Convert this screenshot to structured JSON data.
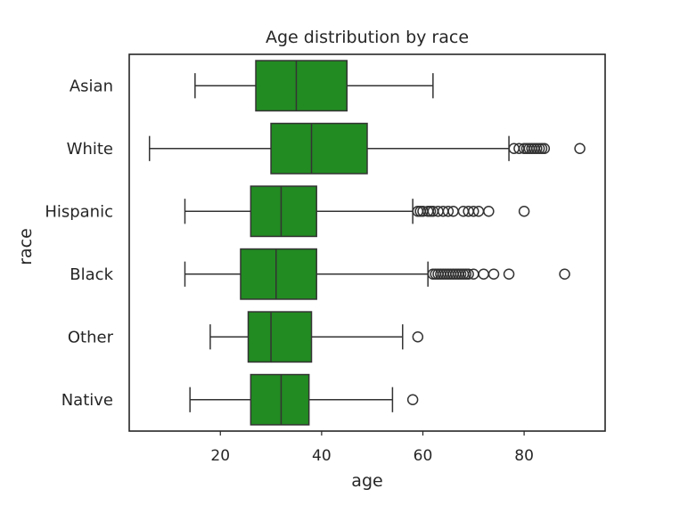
{
  "chart_data": {
    "type": "box",
    "orientation": "horizontal",
    "title": "Age distribution by race",
    "xlabel": "age",
    "ylabel": "race",
    "xlim": [
      2,
      96
    ],
    "xticks": [
      20,
      40,
      60,
      80
    ],
    "grid": false,
    "box_color": "#228b22",
    "categories": [
      "Asian",
      "White",
      "Hispanic",
      "Black",
      "Other",
      "Native"
    ],
    "series": [
      {
        "category": "Asian",
        "whisker_low": 15,
        "q1": 27,
        "median": 35,
        "q3": 45,
        "whisker_high": 62,
        "outliers": []
      },
      {
        "category": "White",
        "whisker_low": 6,
        "q1": 30,
        "median": 38,
        "q3": 49,
        "whisker_high": 77,
        "outliers": [
          78,
          79,
          80,
          80.5,
          81,
          81.5,
          82,
          82.5,
          83,
          83.5,
          84,
          91
        ]
      },
      {
        "category": "Hispanic",
        "whisker_low": 13,
        "q1": 26,
        "median": 32,
        "q3": 39,
        "whisker_high": 58,
        "outliers": [
          59,
          59.5,
          60,
          61,
          61.5,
          62,
          63,
          64,
          65,
          66,
          68,
          69,
          70,
          71,
          73,
          80
        ]
      },
      {
        "category": "Black",
        "whisker_low": 13,
        "q1": 24,
        "median": 31,
        "q3": 39,
        "whisker_high": 61,
        "outliers": [
          62,
          62.5,
          63,
          63.5,
          64,
          64.5,
          65,
          65.5,
          66,
          66.5,
          67,
          67.5,
          68,
          68.5,
          69,
          70,
          72,
          74,
          77,
          88
        ]
      },
      {
        "category": "Other",
        "whisker_low": 18,
        "q1": 25.5,
        "median": 30,
        "q3": 38,
        "whisker_high": 56,
        "outliers": [
          59
        ]
      },
      {
        "category": "Native",
        "whisker_low": 14,
        "q1": 26,
        "median": 32,
        "q3": 37.5,
        "whisker_high": 54,
        "outliers": [
          58
        ]
      }
    ]
  }
}
